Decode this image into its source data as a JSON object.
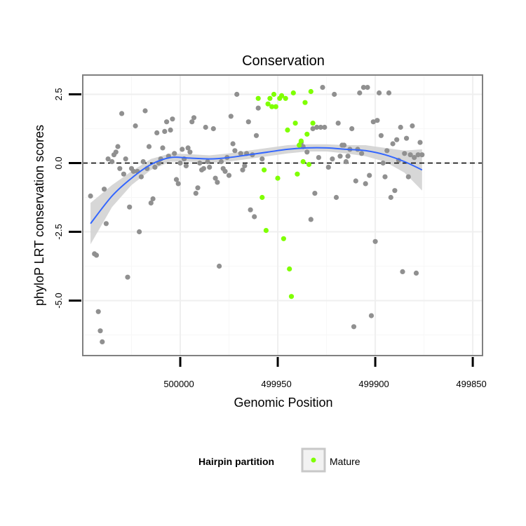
{
  "chart_data": {
    "type": "scatter",
    "title": "Conservation",
    "xlabel": "Genomic Position",
    "ylabel": "phyloP LRT conservation scores",
    "x_reversed": true,
    "xlim": [
      500050,
      499845
    ],
    "ylim": [
      -7,
      3.2
    ],
    "x_ticks": [
      500000,
      499950,
      499900,
      499850
    ],
    "y_ticks": [
      2.5,
      0.0,
      -2.5,
      -5.0
    ],
    "x_tick_labels": [
      "500000",
      "499950",
      "499900",
      "499850"
    ],
    "y_tick_labels": [
      "2.5",
      "0.0",
      "-2.5",
      "-5.0"
    ],
    "grid": true,
    "reference_line": {
      "y": 0,
      "style": "dashed",
      "color": "#000000"
    },
    "legend": {
      "title": "Hairpin partition",
      "entries": [
        {
          "label": "Mature",
          "color": "#7FFF00"
        }
      ],
      "placement": "bottom"
    },
    "series": [
      {
        "name": "",
        "color": "#909090",
        "points": [
          [
            500046,
            -1.2
          ],
          [
            500044,
            -3.3
          ],
          [
            500043,
            -3.35
          ],
          [
            500042,
            -5.4
          ],
          [
            500041,
            -6.1
          ],
          [
            500040,
            -6.5
          ],
          [
            500039,
            -0.95
          ],
          [
            500038,
            -2.2
          ],
          [
            500037,
            0.15
          ],
          [
            500035,
            0.05
          ],
          [
            500034,
            0.3
          ],
          [
            500033,
            0.4
          ],
          [
            500032,
            0.6
          ],
          [
            500031,
            -0.2
          ],
          [
            500030,
            1.8
          ],
          [
            500029,
            -0.4
          ],
          [
            500028,
            0.15
          ],
          [
            500027,
            -4.15
          ],
          [
            500026,
            -1.6
          ],
          [
            500025,
            -0.2
          ],
          [
            500024,
            -0.3
          ],
          [
            500023,
            1.35
          ],
          [
            500022,
            -0.3
          ],
          [
            500021,
            -2.5
          ],
          [
            500020,
            -0.5
          ],
          [
            500019,
            0.05
          ],
          [
            500018,
            1.9
          ],
          [
            500017,
            -0.2
          ],
          [
            500016,
            0.6
          ],
          [
            500015,
            -1.45
          ],
          [
            500014,
            -1.3
          ],
          [
            500013,
            -0.15
          ],
          [
            500012,
            1.1
          ],
          [
            500011,
            0.0
          ],
          [
            500010,
            0.15
          ],
          [
            500009,
            0.55
          ],
          [
            500008,
            1.15
          ],
          [
            500007,
            1.5
          ],
          [
            500006,
            0.25
          ],
          [
            500005,
            1.2
          ],
          [
            500004,
            1.6
          ],
          [
            500003,
            0.35
          ],
          [
            500002,
            -0.6
          ],
          [
            500001,
            -0.75
          ],
          [
            500000,
            0.0
          ],
          [
            499999,
            0.5
          ],
          [
            499998,
            0.15
          ],
          [
            499997,
            -0.1
          ],
          [
            499996,
            0.55
          ],
          [
            499995,
            0.4
          ],
          [
            499994,
            1.5
          ],
          [
            499993,
            1.65
          ],
          [
            499992,
            -1.1
          ],
          [
            499991,
            -0.9
          ],
          [
            499990,
            0.0
          ],
          [
            499989,
            -0.25
          ],
          [
            499988,
            -0.2
          ],
          [
            499987,
            1.3
          ],
          [
            499986,
            0.05
          ],
          [
            499985,
            -0.15
          ],
          [
            499983,
            1.25
          ],
          [
            499982,
            -0.55
          ],
          [
            499981,
            -0.7
          ],
          [
            499980,
            -3.75
          ],
          [
            499979,
            0.05
          ],
          [
            499978,
            -0.2
          ],
          [
            499977,
            -0.3
          ],
          [
            499976,
            0.2
          ],
          [
            499975,
            -0.45
          ],
          [
            499974,
            1.7
          ],
          [
            499973,
            0.7
          ],
          [
            499972,
            0.45
          ],
          [
            499971,
            2.5
          ],
          [
            499969,
            0.35
          ],
          [
            499968,
            -0.25
          ],
          [
            499967,
            -0.1
          ],
          [
            499966,
            0.35
          ],
          [
            499965,
            1.5
          ],
          [
            499964,
            -1.7
          ],
          [
            499963,
            0.3
          ],
          [
            499962,
            -1.95
          ],
          [
            499961,
            1.0
          ],
          [
            499960,
            2.0
          ],
          [
            499958,
            0.15
          ],
          [
            499938,
            0.75
          ],
          [
            499937,
            0.6
          ],
          [
            499935,
            0.4
          ],
          [
            499933,
            -2.05
          ],
          [
            499932,
            1.25
          ],
          [
            499931,
            -1.1
          ],
          [
            499930,
            1.3
          ],
          [
            499929,
            0.2
          ],
          [
            499928,
            1.3
          ],
          [
            499927,
            2.75
          ],
          [
            499926,
            1.3
          ],
          [
            499924,
            -0.15
          ],
          [
            499922,
            0.15
          ],
          [
            499921,
            2.5
          ],
          [
            499920,
            -1.25
          ],
          [
            499919,
            1.45
          ],
          [
            499918,
            0.25
          ],
          [
            499917,
            0.65
          ],
          [
            499916,
            0.65
          ],
          [
            499915,
            0.05
          ],
          [
            499914,
            0.25
          ],
          [
            499913,
            0.5
          ],
          [
            499912,
            1.25
          ],
          [
            499911,
            -5.95
          ],
          [
            499910,
            -0.65
          ],
          [
            499909,
            0.5
          ],
          [
            499908,
            2.55
          ],
          [
            499907,
            0.35
          ],
          [
            499906,
            2.75
          ],
          [
            499905,
            -0.75
          ],
          [
            499904,
            2.75
          ],
          [
            499903,
            -0.45
          ],
          [
            499902,
            -5.55
          ],
          [
            499901,
            1.5
          ],
          [
            499900,
            -2.85
          ],
          [
            499899,
            1.55
          ],
          [
            499898,
            2.55
          ],
          [
            499897,
            1.0
          ],
          [
            499896,
            0.0
          ],
          [
            499895,
            -0.5
          ],
          [
            499894,
            0.45
          ],
          [
            499893,
            2.55
          ],
          [
            499892,
            -1.25
          ],
          [
            499891,
            0.7
          ],
          [
            499890,
            -1.0
          ],
          [
            499889,
            0.85
          ],
          [
            499888,
            0.1
          ],
          [
            499887,
            1.3
          ],
          [
            499886,
            -3.95
          ],
          [
            499885,
            0.35
          ],
          [
            499884,
            0.9
          ],
          [
            499883,
            -0.5
          ],
          [
            499882,
            0.3
          ],
          [
            499881,
            1.35
          ],
          [
            499880,
            0.2
          ],
          [
            499879,
            -4.0
          ],
          [
            499878,
            0.3
          ],
          [
            499877,
            0.75
          ],
          [
            499876,
            0.3
          ]
        ]
      },
      {
        "name": "Mature",
        "color": "#7FFF00",
        "points": [
          [
            499960,
            2.35
          ],
          [
            499958,
            -1.25
          ],
          [
            499957,
            -0.25
          ],
          [
            499956,
            -2.45
          ],
          [
            499955,
            2.15
          ],
          [
            499954,
            2.35
          ],
          [
            499953,
            2.05
          ],
          [
            499952,
            2.5
          ],
          [
            499951,
            2.05
          ],
          [
            499950,
            -0.55
          ],
          [
            499949,
            2.35
          ],
          [
            499948,
            2.45
          ],
          [
            499947,
            -2.75
          ],
          [
            499946,
            2.35
          ],
          [
            499945,
            1.2
          ],
          [
            499944,
            -3.85
          ],
          [
            499943,
            -4.85
          ],
          [
            499942,
            2.55
          ],
          [
            499941,
            1.45
          ],
          [
            499940,
            -0.4
          ],
          [
            499939,
            0.65
          ],
          [
            499938,
            0.8
          ],
          [
            499937,
            0.05
          ],
          [
            499936,
            2.2
          ],
          [
            499935,
            1.05
          ],
          [
            499934,
            -0.05
          ],
          [
            499933,
            2.6
          ],
          [
            499932,
            1.45
          ]
        ]
      }
    ],
    "smooth": {
      "color": "#3366FF",
      "band_color": "#D3D3D3",
      "x": [
        500046,
        500035,
        500025,
        500015,
        500005,
        499995,
        499985,
        499975,
        499965,
        499955,
        499945,
        499935,
        499925,
        499915,
        499905,
        499895,
        499885,
        499876
      ],
      "y": [
        -2.2,
        -1.2,
        -0.55,
        -0.05,
        0.2,
        0.18,
        0.15,
        0.2,
        0.3,
        0.4,
        0.5,
        0.55,
        0.55,
        0.5,
        0.45,
        0.3,
        0.05,
        -0.25
      ],
      "lower": [
        -2.95,
        -1.6,
        -0.8,
        -0.25,
        0.05,
        0.05,
        0.02,
        0.05,
        0.15,
        0.25,
        0.35,
        0.42,
        0.42,
        0.35,
        0.25,
        0.05,
        -0.35,
        -1.0
      ],
      "upper": [
        -1.45,
        -0.8,
        -0.3,
        0.15,
        0.35,
        0.32,
        0.28,
        0.35,
        0.45,
        0.55,
        0.65,
        0.68,
        0.68,
        0.65,
        0.65,
        0.55,
        0.45,
        0.5
      ]
    }
  }
}
